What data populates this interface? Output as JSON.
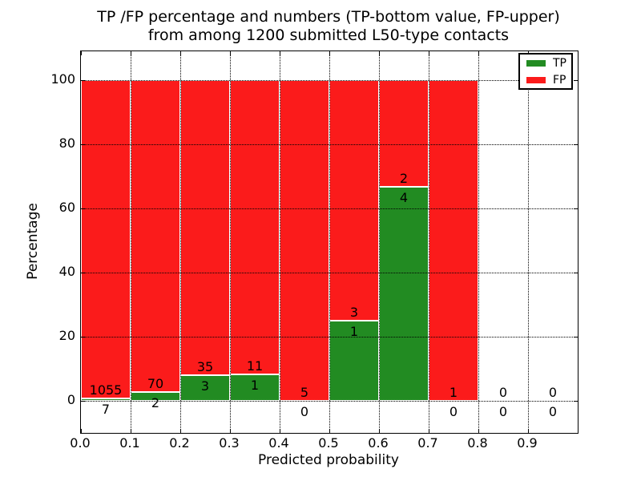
{
  "figure": {
    "title_line1": "TP /FP percentage and numbers (TP-bottom value, FP-upper)",
    "title_line2": "from among 1200 submitted L50-type contacts",
    "xlabel": "Predicted probability",
    "ylabel": "Percentage"
  },
  "legend": {
    "items": [
      {
        "label": "TP",
        "color": "#228b22"
      },
      {
        "label": "FP",
        "color": "#fb1b1b"
      }
    ]
  },
  "chart_data": {
    "type": "bar",
    "variant": "stacked-percentage",
    "title": "TP /FP percentage and numbers (TP-bottom value, FP-upper) from among 1200 submitted L50-type contacts",
    "xlabel": "Predicted probability",
    "ylabel": "Percentage",
    "total_submitted": 1200,
    "bin_width": 0.1,
    "bin_starts": [
      0.0,
      0.1,
      0.2,
      0.3,
      0.4,
      0.5,
      0.6,
      0.7,
      0.8,
      0.9
    ],
    "series": [
      {
        "name": "TP",
        "color": "#228b22",
        "values": [
          7,
          2,
          3,
          1,
          0,
          1,
          4,
          0,
          0,
          0
        ]
      },
      {
        "name": "FP",
        "color": "#fb1b1b",
        "values": [
          1055,
          70,
          35,
          11,
          5,
          3,
          2,
          1,
          0,
          0
        ]
      }
    ],
    "tp_percent_of_bin": [
      0.66,
      2.78,
      7.89,
      8.33,
      0.0,
      25.0,
      66.67,
      0.0,
      null,
      null
    ],
    "xticks": [
      "0.0",
      "0.1",
      "0.2",
      "0.3",
      "0.4",
      "0.5",
      "0.6",
      "0.7",
      "0.8",
      "0.9"
    ],
    "yticks": [
      0,
      20,
      40,
      60,
      80,
      100
    ],
    "xlim": [
      0.0,
      1.0
    ],
    "ylim": [
      -10,
      109
    ],
    "grid": "dotted-black-above-bars",
    "bar_edge_color": "#ffffff",
    "legend_position": "upper-right"
  }
}
